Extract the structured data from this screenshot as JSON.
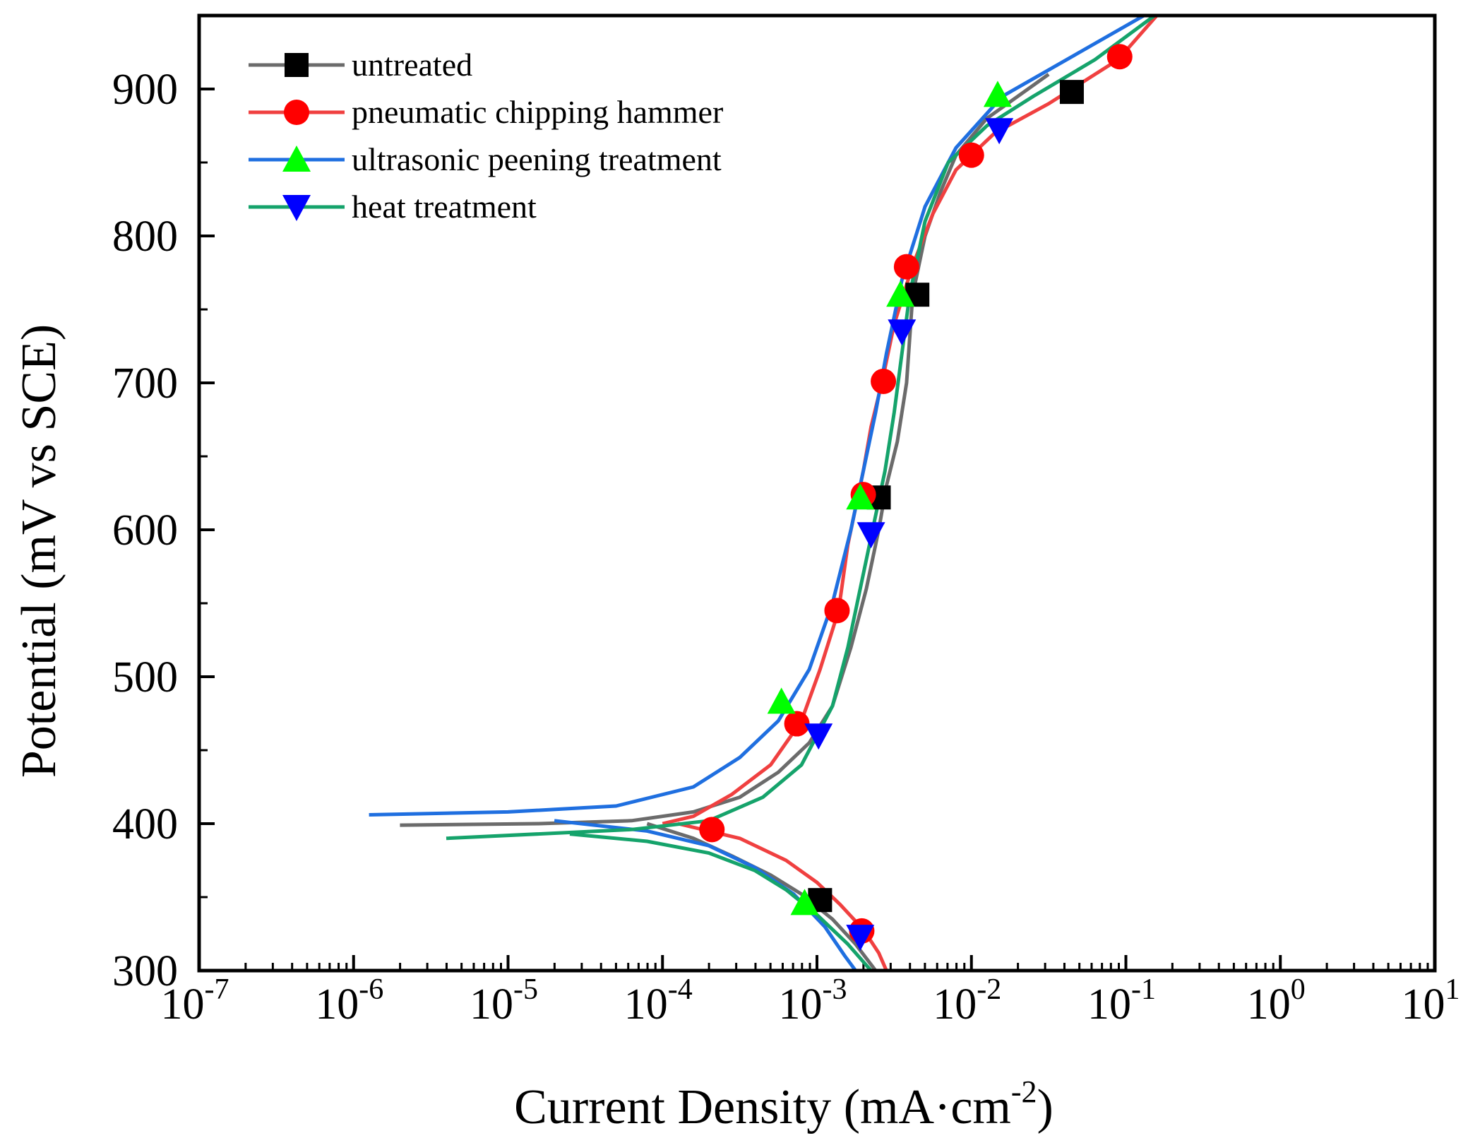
{
  "chart_data": {
    "type": "line",
    "title": "",
    "xlabel": "Current Density (mA·cm",
    "xlabel_sup": "-2",
    "xlabel_end": ")",
    "ylabel": "Potential (mV vs SCE)",
    "xscale": "log",
    "xlim_exp": [
      -7,
      1
    ],
    "ylim": [
      300,
      950
    ],
    "x_ticks": [
      {
        "exp": -7,
        "base": "10",
        "sup": "-7"
      },
      {
        "exp": -6,
        "base": "10",
        "sup": "-6"
      },
      {
        "exp": -5,
        "base": "10",
        "sup": "-5"
      },
      {
        "exp": -4,
        "base": "10",
        "sup": "-4"
      },
      {
        "exp": -3,
        "base": "10",
        "sup": "-3"
      },
      {
        "exp": -2,
        "base": "10",
        "sup": "-2"
      },
      {
        "exp": -1,
        "base": "10",
        "sup": "-1"
      },
      {
        "exp": 0,
        "base": "10",
        "sup": "0"
      },
      {
        "exp": 1,
        "base": "10",
        "sup": "1"
      }
    ],
    "y_ticks": [
      "300",
      "400",
      "500",
      "600",
      "700",
      "800",
      "900"
    ],
    "legend_position": "top-left",
    "series": [
      {
        "name": "untreated",
        "color": "#6b6b6b",
        "marker": "square",
        "marker_color": "#000000",
        "line_points": [
          [
            -1.5,
            910
          ],
          [
            -1.9,
            880
          ],
          [
            -2.1,
            855
          ],
          [
            -2.2,
            830
          ],
          [
            -2.3,
            800
          ],
          [
            -2.38,
            760
          ],
          [
            -2.42,
            700
          ],
          [
            -2.48,
            660
          ],
          [
            -2.55,
            630
          ],
          [
            -2.6,
            600
          ],
          [
            -2.68,
            560
          ],
          [
            -2.78,
            520
          ],
          [
            -2.9,
            480
          ],
          [
            -3.05,
            455
          ],
          [
            -3.25,
            435
          ],
          [
            -3.5,
            418
          ],
          [
            -3.8,
            408
          ],
          [
            -4.2,
            402
          ],
          [
            -4.8,
            400
          ],
          [
            -5.7,
            399
          ]
        ],
        "line_points_cathodic": [
          [
            -4.1,
            400
          ],
          [
            -3.8,
            390
          ],
          [
            -3.55,
            378
          ],
          [
            -3.3,
            365
          ],
          [
            -3.1,
            352
          ],
          [
            -2.9,
            335
          ],
          [
            -2.75,
            318
          ],
          [
            -2.62,
            300
          ]
        ],
        "markers": [
          [
            -1.35,
            898
          ],
          [
            -2.35,
            760
          ],
          [
            -2.6,
            622
          ],
          [
            -2.98,
            348
          ]
        ]
      },
      {
        "name": "pneumatic chipping hammer",
        "color": "#f04040",
        "marker": "circle",
        "marker_color": "#ff0000",
        "line_points": [
          [
            -0.8,
            950
          ],
          [
            -1.05,
            920
          ],
          [
            -1.5,
            890
          ],
          [
            -1.85,
            870
          ],
          [
            -2.1,
            845
          ],
          [
            -2.25,
            815
          ],
          [
            -2.38,
            780
          ],
          [
            -2.5,
            740
          ],
          [
            -2.58,
            700
          ],
          [
            -2.65,
            670
          ],
          [
            -2.7,
            640
          ],
          [
            -2.74,
            620
          ],
          [
            -2.8,
            590
          ],
          [
            -2.86,
            545
          ],
          [
            -2.98,
            505
          ],
          [
            -3.1,
            470
          ],
          [
            -3.3,
            440
          ],
          [
            -3.55,
            420
          ],
          [
            -3.8,
            405
          ],
          [
            -4.0,
            400
          ]
        ],
        "line_points_cathodic": [
          [
            -3.9,
            400
          ],
          [
            -3.5,
            390
          ],
          [
            -3.2,
            375
          ],
          [
            -3.0,
            360
          ],
          [
            -2.85,
            345
          ],
          [
            -2.7,
            328
          ],
          [
            -2.6,
            312
          ],
          [
            -2.55,
            300
          ]
        ],
        "markers": [
          [
            -1.04,
            922
          ],
          [
            -2.0,
            855
          ],
          [
            -2.42,
            779
          ],
          [
            -2.57,
            701
          ],
          [
            -2.7,
            624
          ],
          [
            -2.87,
            545
          ],
          [
            -3.13,
            468
          ],
          [
            -3.68,
            396
          ],
          [
            -2.71,
            327
          ]
        ]
      },
      {
        "name": "ultrasonic peening treatment",
        "color": "#1f6fe0",
        "marker": "triangle-up",
        "marker_color": "#00ff00",
        "line_points": [
          [
            -0.8,
            955
          ],
          [
            -1.3,
            925
          ],
          [
            -1.8,
            895
          ],
          [
            -2.1,
            860
          ],
          [
            -2.3,
            820
          ],
          [
            -2.45,
            770
          ],
          [
            -2.55,
            720
          ],
          [
            -2.62,
            680
          ],
          [
            -2.7,
            640
          ],
          [
            -2.78,
            600
          ],
          [
            -2.9,
            550
          ],
          [
            -3.05,
            505
          ],
          [
            -3.25,
            470
          ],
          [
            -3.5,
            445
          ],
          [
            -3.8,
            425
          ],
          [
            -4.3,
            412
          ],
          [
            -5.0,
            408
          ],
          [
            -5.9,
            406
          ]
        ],
        "line_points_cathodic": [
          [
            -4.7,
            402
          ],
          [
            -4.1,
            395
          ],
          [
            -3.7,
            385
          ],
          [
            -3.4,
            370
          ],
          [
            -3.15,
            352
          ],
          [
            -2.95,
            330
          ],
          [
            -2.82,
            310
          ],
          [
            -2.75,
            300
          ]
        ],
        "markers": [
          [
            -1.83,
            896
          ],
          [
            -2.46,
            760
          ],
          [
            -2.72,
            622
          ],
          [
            -3.23,
            483
          ],
          [
            -3.08,
            346
          ]
        ]
      },
      {
        "name": "heat treatment",
        "color": "#15a36b",
        "marker": "triangle-down",
        "marker_color": "#0000ff",
        "line_points": [
          [
            -0.75,
            955
          ],
          [
            -1.2,
            920
          ],
          [
            -1.6,
            895
          ],
          [
            -1.9,
            875
          ],
          [
            -2.15,
            850
          ],
          [
            -2.3,
            810
          ],
          [
            -2.4,
            760
          ],
          [
            -2.45,
            720
          ],
          [
            -2.5,
            680
          ],
          [
            -2.56,
            640
          ],
          [
            -2.64,
            600
          ],
          [
            -2.72,
            560
          ],
          [
            -2.8,
            520
          ],
          [
            -2.9,
            480
          ],
          [
            -3.1,
            440
          ],
          [
            -3.35,
            418
          ],
          [
            -3.7,
            402
          ],
          [
            -4.2,
            396
          ],
          [
            -5.4,
            390
          ]
        ],
        "line_points_cathodic": [
          [
            -4.6,
            393
          ],
          [
            -4.1,
            388
          ],
          [
            -3.7,
            380
          ],
          [
            -3.4,
            368
          ],
          [
            -3.2,
            355
          ],
          [
            -3.0,
            338
          ],
          [
            -2.8,
            318
          ],
          [
            -2.65,
            300
          ]
        ],
        "markers": [
          [
            -1.82,
            872
          ],
          [
            -2.45,
            735
          ],
          [
            -2.65,
            597
          ],
          [
            -2.99,
            460
          ],
          [
            -2.72,
            323
          ]
        ]
      }
    ]
  }
}
